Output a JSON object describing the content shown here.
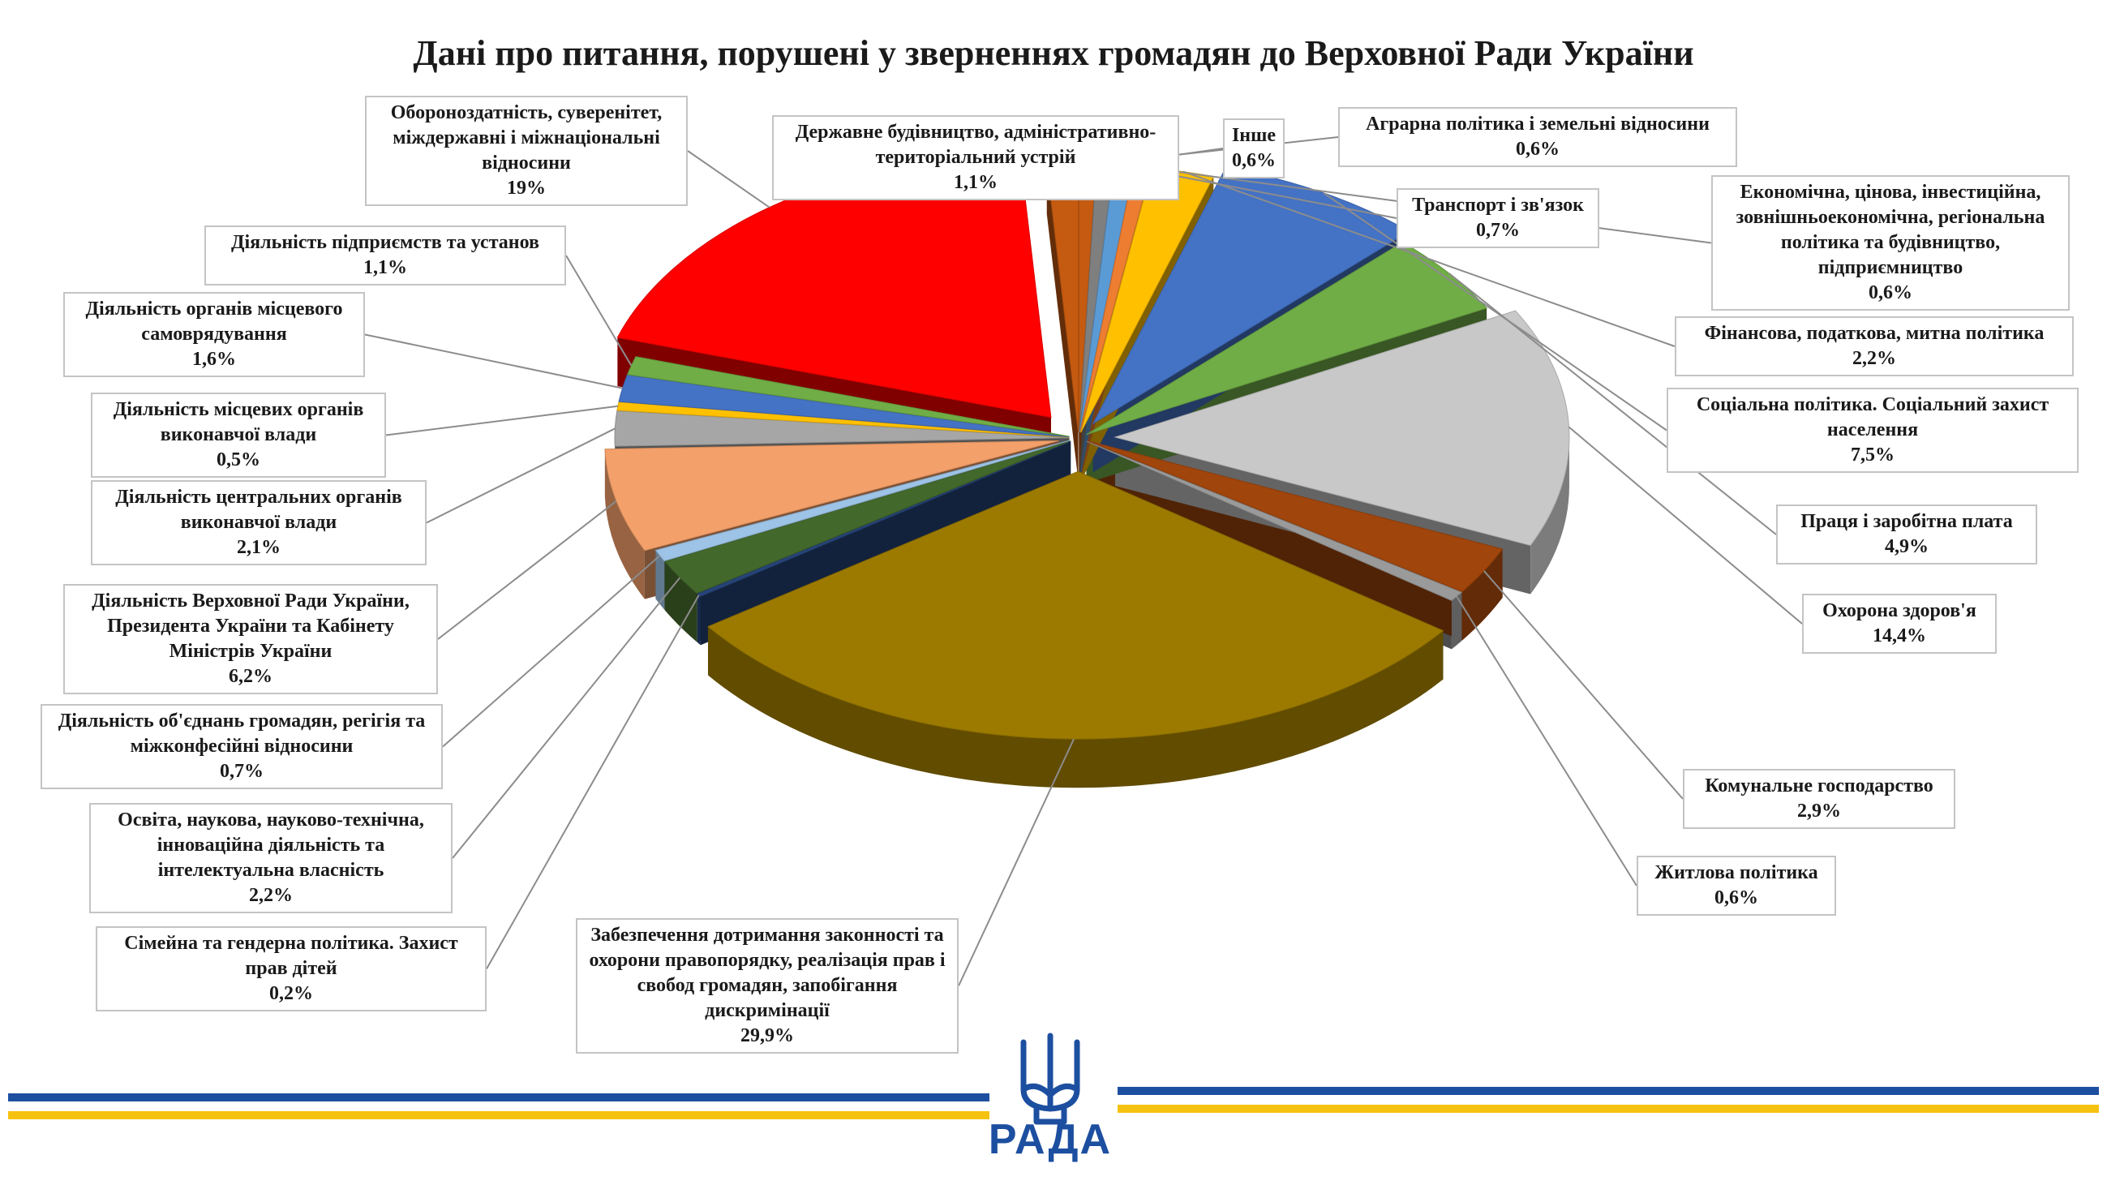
{
  "chart_data": {
    "type": "pie",
    "title": "Дані про питання, порушені у зверненнях громадян до Верховної Ради України",
    "slices": [
      {
        "label": "Аграрна політика і земельні відносини",
        "value": 0.6,
        "value_label": "0,6%",
        "color": "#C55A11"
      },
      {
        "label": "Інше",
        "value": 0.6,
        "value_label": "0,6%",
        "color": "#7F7F7F"
      },
      {
        "label": "Транспорт і зв'язок",
        "value": 0.7,
        "value_label": "0,7%",
        "color": "#5B9BD5"
      },
      {
        "label": "Економічна, цінова, інвестиційна, зовнішньоекономічна, регіональна політика та будівництво, підприємництво",
        "value": 0.6,
        "value_label": "0,6%",
        "color": "#ED7D31"
      },
      {
        "label": "Фінансова, податкова, митна політика",
        "value": 2.2,
        "value_label": "2,2%",
        "color": "#FFC000"
      },
      {
        "label": "Соціальна політика. Соціальний захист населення",
        "value": 7.5,
        "value_label": "7,5%",
        "color": "#4472C4"
      },
      {
        "label": "Праця і заробітна плата",
        "value": 4.9,
        "value_label": "4,9%",
        "color": "#70AD47"
      },
      {
        "label": "Охорона здоров'я",
        "value": 14.4,
        "value_label": "14,4%",
        "color": "#C8C8C8"
      },
      {
        "label": "Комунальне господарство",
        "value": 2.9,
        "value_label": "2,9%",
        "color": "#A0450C"
      },
      {
        "label": "Житлова політика",
        "value": 0.6,
        "value_label": "0,6%",
        "color": "#9A9A9A"
      },
      {
        "label": "Забезпечення дотримання законності та охорони правопорядку, реалізація прав і свобод громадян, запобігання дискримінації",
        "value": 29.9,
        "value_label": "29,9%",
        "color": "#9C7A00"
      },
      {
        "label": "Сімейна та гендерна політика. Захист прав дітей",
        "value": 0.2,
        "value_label": "0,2%",
        "color": "#264478"
      },
      {
        "label": "Освіта, наукова, науково-технічна, інноваційна діяльність та інтелектуальна власність",
        "value": 2.2,
        "value_label": "2,2%",
        "color": "#43682B"
      },
      {
        "label": "Діяльність об'єднань громадян, регігія та міжконфесійні відносини",
        "value": 0.7,
        "value_label": "0,7%",
        "color": "#9DC3E6"
      },
      {
        "label": "Діяльність Верховної Ради України, Президента України та Кабінету Міністрів України",
        "value": 6.2,
        "value_label": "6,2%",
        "color": "#F4A06A"
      },
      {
        "label": "Діяльність центральних органів виконавчої влади",
        "value": 2.1,
        "value_label": "2,1%",
        "color": "#A6A6A6"
      },
      {
        "label": "Діяльність місцевих органів виконавчої влади",
        "value": 0.5,
        "value_label": "0,5%",
        "color": "#FFC000"
      },
      {
        "label": "Діяльність органів місцевого самоврядування",
        "value": 1.6,
        "value_label": "1,6%",
        "color": "#4472C4"
      },
      {
        "label": "Діяльність підприємств та установ",
        "value": 1.1,
        "value_label": "1,1%",
        "color": "#70AD47"
      },
      {
        "label": "Обороноздатність, суверенітет, міждержавні і міжнаціональні відносини",
        "value": 19,
        "value_label": "19%",
        "color": "#FF0000"
      },
      {
        "label": "Державне будівництво, адміністративно-територіальний устрій",
        "value": 1.1,
        "value_label": "1,1%",
        "color": "#C55A11"
      }
    ],
    "legend": "none"
  },
  "logo": {
    "text": "РАДА"
  },
  "colors": {
    "stripe_blue": "#1d4fa0",
    "stripe_yellow": "#f5c211",
    "logo_blue": "#1d4fa0"
  }
}
